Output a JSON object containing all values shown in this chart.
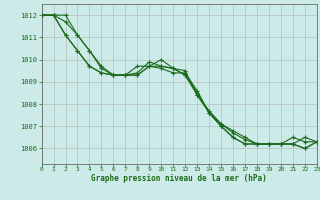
{
  "xlabel": "Graphe pression niveau de la mer (hPa)",
  "x_ticks": [
    0,
    1,
    2,
    3,
    4,
    5,
    6,
    7,
    8,
    9,
    10,
    11,
    12,
    13,
    14,
    15,
    16,
    17,
    18,
    19,
    20,
    21,
    22,
    23
  ],
  "y_ticks": [
    1006,
    1007,
    1008,
    1009,
    1010,
    1011,
    1012
  ],
  "ylim": [
    1005.3,
    1012.5
  ],
  "xlim": [
    0,
    23
  ],
  "background_color": "#cceae7",
  "grid_color": "#b0b0b0",
  "line_color": "#1a6b1a",
  "line1_x": [
    0,
    1,
    2,
    3,
    4,
    5,
    6,
    7,
    8,
    9,
    10,
    11,
    12,
    13,
    14,
    15,
    16,
    17,
    18,
    19,
    20,
    21,
    22,
    23
  ],
  "line1_y": [
    1012,
    1012,
    1011.7,
    1011.1,
    1010.4,
    1009.7,
    1009.3,
    1009.3,
    1009.3,
    1009.7,
    1010.0,
    1009.6,
    1009.3,
    1008.5,
    1007.6,
    1007.1,
    1006.7,
    1006.4,
    1006.2,
    1006.2,
    1006.2,
    1006.2,
    1006.5,
    1006.3
  ],
  "line2_x": [
    0,
    1,
    2,
    3,
    4,
    5,
    6,
    7,
    8,
    9,
    10,
    11,
    12,
    13,
    14,
    15,
    16,
    17,
    18,
    19,
    20,
    21,
    22,
    23
  ],
  "line2_y": [
    1012,
    1012,
    1011.1,
    1010.4,
    1009.7,
    1009.4,
    1009.3,
    1009.3,
    1009.7,
    1009.7,
    1009.6,
    1009.4,
    1009.4,
    1008.6,
    1007.6,
    1007.0,
    1006.5,
    1006.2,
    1006.2,
    1006.2,
    1006.2,
    1006.2,
    1006.0,
    1006.3
  ],
  "line3_x": [
    0,
    1,
    2,
    3,
    4,
    5,
    6,
    7,
    8,
    9,
    10,
    11,
    12,
    13,
    14,
    15,
    16,
    17,
    18,
    19,
    20,
    21,
    22,
    23
  ],
  "line3_y": [
    1012,
    1012,
    1012,
    1011.1,
    1010.4,
    1009.6,
    1009.3,
    1009.3,
    1009.4,
    1009.9,
    1009.7,
    1009.6,
    1009.5,
    1008.4,
    1007.6,
    1007.0,
    1006.5,
    1006.2,
    1006.2,
    1006.2,
    1006.2,
    1006.5,
    1006.3,
    1006.3
  ],
  "line4_x": [
    0,
    1,
    2,
    3,
    4,
    5,
    6,
    7,
    8,
    9,
    10,
    11,
    12,
    13,
    14,
    15,
    16,
    17,
    18,
    19,
    20,
    21,
    22,
    23
  ],
  "line4_y": [
    1012,
    1012,
    1011.1,
    1010.4,
    1009.7,
    1009.4,
    1009.3,
    1009.3,
    1009.3,
    1009.7,
    1009.7,
    1009.6,
    1009.3,
    1008.4,
    1007.7,
    1007.1,
    1006.8,
    1006.5,
    1006.2,
    1006.2,
    1006.2,
    1006.2,
    1006.0,
    1006.3
  ]
}
